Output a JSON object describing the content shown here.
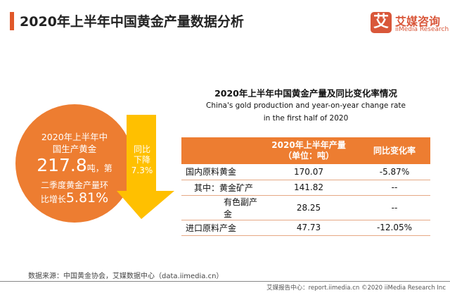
{
  "header": {
    "title": "2020年上半年中国黄金产量数据分析",
    "logo_icon": "艾",
    "logo_cn": "艾媒咨询",
    "logo_en": "iiMedia Research"
  },
  "highlight": {
    "line1": "2020年上半年中",
    "line2": "国生产黄金",
    "value": "217.8",
    "value_suffix": "吨，第",
    "line4": "二季度黄金产量环",
    "line5_prefix": "比增长",
    "growth": "5.81%"
  },
  "arrow": {
    "line1": "同比",
    "line2": "下降",
    "value": "7.3%"
  },
  "table_section": {
    "title": "2020年上半年中国黄金产量及同比变化率情况",
    "subtitle1": "China's gold production and year-on-year change rate",
    "subtitle2": "in the first half of 2020",
    "headers": [
      "",
      "2020年上半年产量（单位：吨）",
      "同比变化率"
    ],
    "rows": [
      [
        "国内原料黄金",
        "170.07",
        "-5.87%"
      ],
      [
        "其中：黄金矿产",
        "141.82",
        "--"
      ],
      [
        "有色副产金",
        "28.25",
        "--"
      ],
      [
        "进口原料产金",
        "47.73",
        "-12.05%"
      ]
    ]
  },
  "footer": {
    "source": "数据来源：中国黄金协会，艾媒数据中心（data.iimedia.cn）",
    "copyright": "艾媒报告中心：report.iimedia.cn  ©2020  iiMedia Research Inc"
  },
  "colors": {
    "accent": "#ed7d31",
    "arrow": "#ffc000",
    "brand": "#d9573a"
  }
}
